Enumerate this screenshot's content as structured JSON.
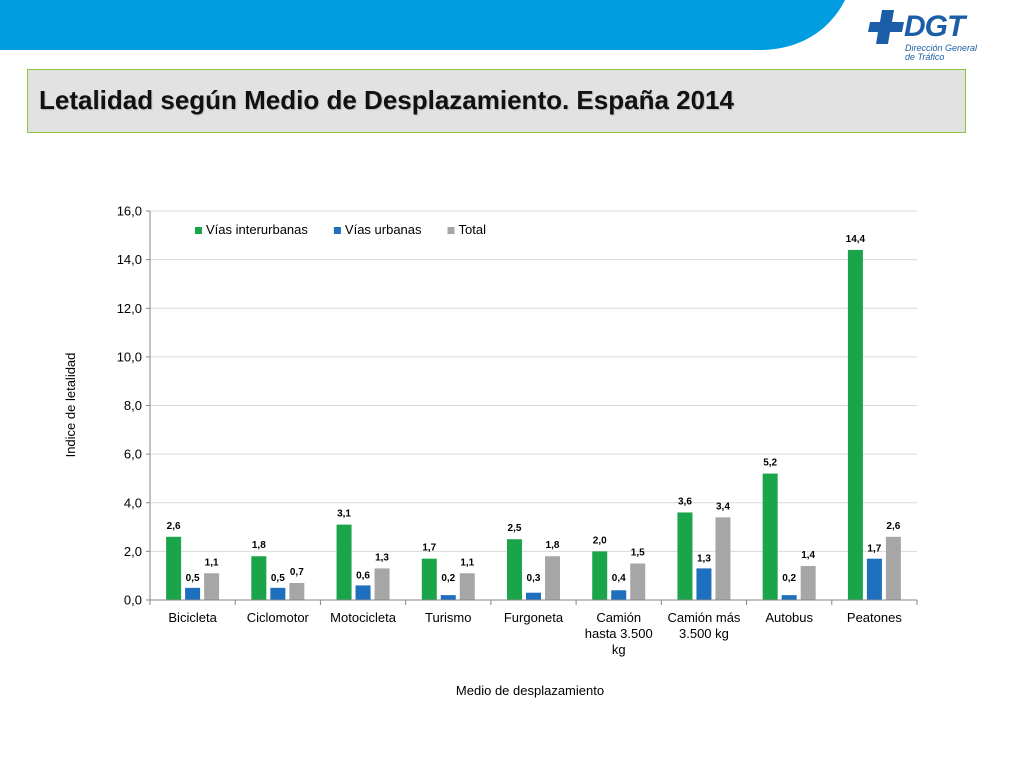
{
  "slide": {
    "title": "Letalidad según Medio de Desplazamiento. España 2014",
    "logo": {
      "word": "DGT",
      "subtitle_line1": "Dirección General",
      "subtitle_line2": "de Tráfico"
    }
  },
  "colors": {
    "band": "#009ee0",
    "logo": "#1b5ea7",
    "title_box": "#e2e2e2",
    "title_border": "#8cc63f"
  },
  "chart_data": {
    "type": "bar",
    "xlabel": "Medio de desplazamiento",
    "ylabel": "Indice de letalidad",
    "ylim": [
      0,
      16
    ],
    "yticks": [
      "0,0",
      "2,0",
      "4,0",
      "6,0",
      "8,0",
      "10,0",
      "12,0",
      "14,0",
      "16,0"
    ],
    "grid": true,
    "legend_position": "top-left",
    "categories": [
      [
        "Bicicleta"
      ],
      [
        "Ciclomotor"
      ],
      [
        "Motocicleta"
      ],
      [
        "Turismo"
      ],
      [
        "Furgoneta"
      ],
      [
        "Camión",
        "hasta 3.500",
        "kg"
      ],
      [
        "Camión más",
        "3.500 kg"
      ],
      [
        "Autobus"
      ],
      [
        "Peatones"
      ]
    ],
    "series": [
      {
        "name": "Vías interurbanas",
        "color": "#1aa54b",
        "values": [
          2.6,
          1.8,
          3.1,
          1.7,
          2.5,
          2.0,
          3.6,
          5.2,
          14.4
        ],
        "labels": [
          "2,6",
          "1,8",
          "3,1",
          "1,7",
          "2,5",
          "2,0",
          "3,6",
          "5,2",
          "14,4"
        ]
      },
      {
        "name": "Vías urbanas",
        "color": "#1f6fbf",
        "values": [
          0.5,
          0.5,
          0.6,
          0.2,
          0.3,
          0.4,
          1.3,
          0.2,
          1.7
        ],
        "labels": [
          "0,5",
          "0,5",
          "0,6",
          "0,2",
          "0,3",
          "0,4",
          "1,3",
          "0,2",
          "1,7"
        ]
      },
      {
        "name": "Total",
        "color": "#a6a6a6",
        "values": [
          1.1,
          0.7,
          1.3,
          1.1,
          1.8,
          1.5,
          3.4,
          1.4,
          2.6
        ],
        "labels": [
          "1,1",
          "0,7",
          "1,3",
          "1,1",
          "1,8",
          "1,5",
          "3,4",
          "1,4",
          "2,6"
        ]
      }
    ]
  }
}
